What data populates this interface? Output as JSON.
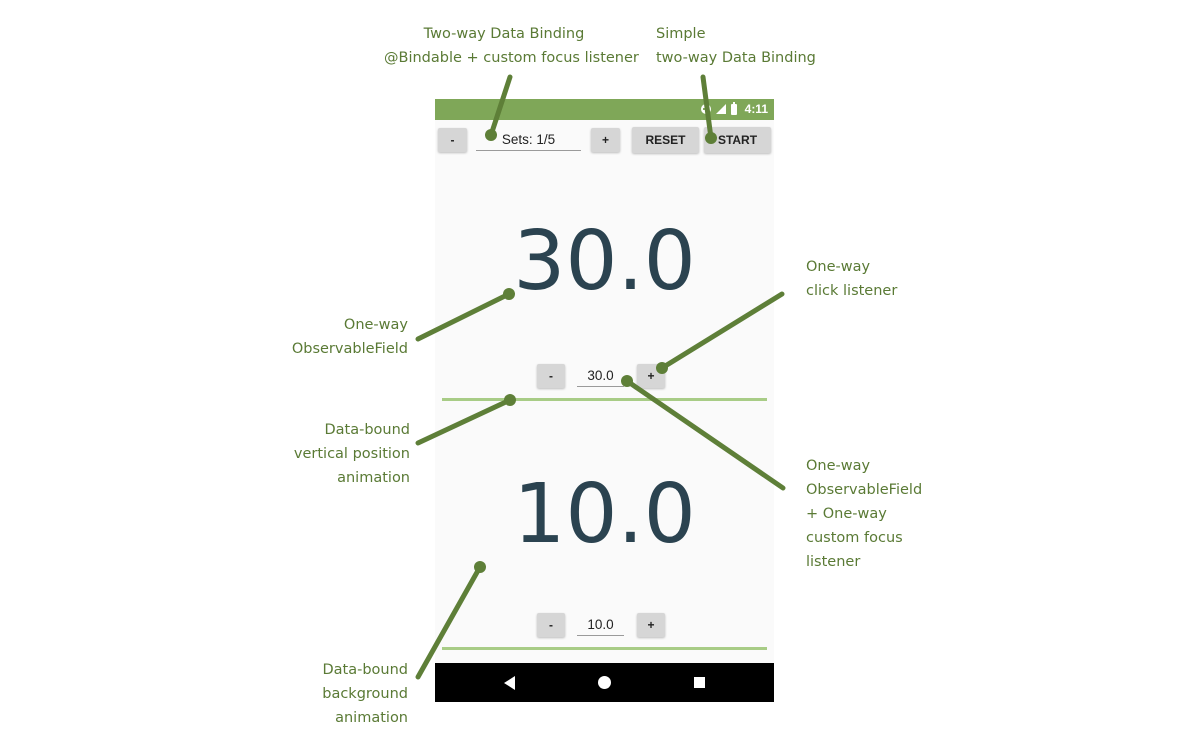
{
  "annotations": {
    "two_way_bindable": [
      "Two-way Data Binding",
      "@Bindable + custom focus listener"
    ],
    "simple_two_way": [
      "Simple",
      "two-way Data Binding"
    ],
    "one_way_click": [
      "One-way",
      "click listener"
    ],
    "one_way_observable": [
      "One-way",
      "ObservableField"
    ],
    "vertical_animation": [
      "Data-bound",
      "vertical position",
      "animation"
    ],
    "observable_focus": [
      "One-way",
      "ObservableField",
      "+  One-way",
      "custom focus",
      "listener"
    ],
    "background_animation": [
      "Data-bound",
      "background",
      "animation"
    ]
  },
  "status_bar": {
    "time": "4:11"
  },
  "toolbar": {
    "minus_label": "-",
    "sets_value": "Sets: 1/5",
    "plus_label": "+",
    "reset_label": "RESET",
    "start_label": "START"
  },
  "work_timer": {
    "display": "30.0",
    "minus_label": "-",
    "value": "30.0",
    "plus_label": "+"
  },
  "rest_timer": {
    "display": "10.0",
    "minus_label": "-",
    "value": "10.0",
    "plus_label": "+"
  },
  "colors": {
    "annotation_text": "#5a7a35",
    "leader_line": "#5e7f38",
    "status_bar": "#7fa758",
    "divider": "#a8cc86",
    "number": "#2b4350",
    "button_bg": "#d6d6d6"
  }
}
